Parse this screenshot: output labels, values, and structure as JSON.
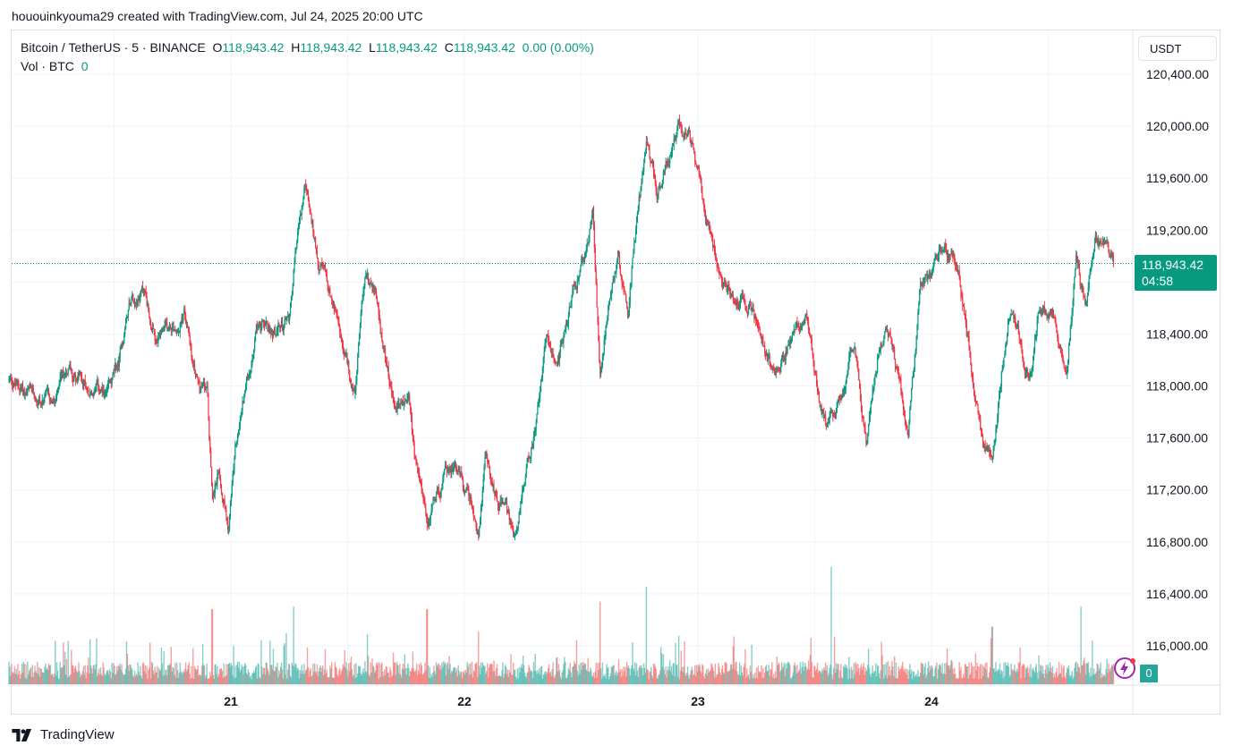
{
  "caption": "hououinkyouma29 created with TradingView.com, Jul 24, 2025 20:00 UTC",
  "legend": {
    "symbol": "Bitcoin / TetherUS · 5 · BINANCE",
    "o_label": "O",
    "o_value": "118,943.42",
    "h_label": "H",
    "h_value": "118,943.42",
    "l_label": "L",
    "l_value": "118,943.42",
    "c_label": "C",
    "c_value": "118,943.42",
    "change": "0.00 (0.00%)"
  },
  "volume_legend": {
    "label": "Vol · BTC",
    "value": "0"
  },
  "currency": "USDT",
  "last_price": {
    "price": "118,943.42",
    "countdown": "04:58"
  },
  "volume_tag": "0",
  "brand": "TradingView",
  "colors": {
    "up": "#089981",
    "down": "#f23645",
    "up_vol": "#26a69a",
    "down_vol": "#ef5350",
    "grid": "#f0f3fa"
  },
  "chart_data": {
    "type": "candlestick",
    "title": "Bitcoin / TetherUS · 5 · BINANCE",
    "ylim": [
      115750,
      120650
    ],
    "y_ticks": [
      {
        "value": 120400,
        "label": "120,400.00"
      },
      {
        "value": 120000,
        "label": "120,000.00"
      },
      {
        "value": 119600,
        "label": "119,600.00"
      },
      {
        "value": 119200,
        "label": "119,200.00"
      },
      {
        "value": 118800,
        "label": "118,800.00"
      },
      {
        "value": 118400,
        "label": "118,400.00"
      },
      {
        "value": 118000,
        "label": "118,000.00"
      },
      {
        "value": 117600,
        "label": "117,600.00"
      },
      {
        "value": 117200,
        "label": "117,200.00"
      },
      {
        "value": 116800,
        "label": "116,800.00"
      },
      {
        "value": 116400,
        "label": "116,400.00"
      },
      {
        "value": 116000,
        "label": "116,000.00"
      }
    ],
    "x_ticks": [
      {
        "day": 21.0,
        "label": "21"
      },
      {
        "day": 22.0,
        "label": "22"
      },
      {
        "day": 23.0,
        "label": "23"
      },
      {
        "day": 24.0,
        "label": "24"
      }
    ],
    "x_range_days": [
      20.05,
      24.95
    ],
    "last_price": 118943.42,
    "price_path": [
      {
        "d": 20.05,
        "p": 118050
      },
      {
        "d": 20.15,
        "p": 117900
      },
      {
        "d": 20.25,
        "p": 117850
      },
      {
        "d": 20.3,
        "p": 118150
      },
      {
        "d": 20.4,
        "p": 118000
      },
      {
        "d": 20.47,
        "p": 117900
      },
      {
        "d": 20.52,
        "p": 118150
      },
      {
        "d": 20.57,
        "p": 118700
      },
      {
        "d": 20.63,
        "p": 118750
      },
      {
        "d": 20.68,
        "p": 118300
      },
      {
        "d": 20.73,
        "p": 118400
      },
      {
        "d": 20.8,
        "p": 118550
      },
      {
        "d": 20.86,
        "p": 118000
      },
      {
        "d": 20.9,
        "p": 117950
      },
      {
        "d": 20.92,
        "p": 117200
      },
      {
        "d": 20.95,
        "p": 117400
      },
      {
        "d": 20.99,
        "p": 116950
      },
      {
        "d": 21.02,
        "p": 117500
      },
      {
        "d": 21.06,
        "p": 117950
      },
      {
        "d": 21.12,
        "p": 118500
      },
      {
        "d": 21.18,
        "p": 118400
      },
      {
        "d": 21.25,
        "p": 118500
      },
      {
        "d": 21.28,
        "p": 119100
      },
      {
        "d": 21.32,
        "p": 119500
      },
      {
        "d": 21.37,
        "p": 119000
      },
      {
        "d": 21.42,
        "p": 118750
      },
      {
        "d": 21.48,
        "p": 118300
      },
      {
        "d": 21.53,
        "p": 117900
      },
      {
        "d": 21.58,
        "p": 118900
      },
      {
        "d": 21.62,
        "p": 118700
      },
      {
        "d": 21.66,
        "p": 118200
      },
      {
        "d": 21.7,
        "p": 117800
      },
      {
        "d": 21.76,
        "p": 117900
      },
      {
        "d": 21.8,
        "p": 117300
      },
      {
        "d": 21.84,
        "p": 116950
      },
      {
        "d": 21.9,
        "p": 117250
      },
      {
        "d": 21.96,
        "p": 117400
      },
      {
        "d": 22.02,
        "p": 117150
      },
      {
        "d": 22.06,
        "p": 116850
      },
      {
        "d": 22.09,
        "p": 117550
      },
      {
        "d": 22.13,
        "p": 117200
      },
      {
        "d": 22.17,
        "p": 117100
      },
      {
        "d": 22.21,
        "p": 116850
      },
      {
        "d": 22.25,
        "p": 117200
      },
      {
        "d": 22.3,
        "p": 117650
      },
      {
        "d": 22.35,
        "p": 118400
      },
      {
        "d": 22.39,
        "p": 118050
      },
      {
        "d": 22.44,
        "p": 118500
      },
      {
        "d": 22.5,
        "p": 118900
      },
      {
        "d": 22.55,
        "p": 119300
      },
      {
        "d": 22.58,
        "p": 118100
      },
      {
        "d": 22.62,
        "p": 118700
      },
      {
        "d": 22.66,
        "p": 119000
      },
      {
        "d": 22.7,
        "p": 118600
      },
      {
        "d": 22.74,
        "p": 119300
      },
      {
        "d": 22.78,
        "p": 119850
      },
      {
        "d": 22.83,
        "p": 119500
      },
      {
        "d": 22.88,
        "p": 119800
      },
      {
        "d": 22.92,
        "p": 120050
      },
      {
        "d": 22.96,
        "p": 119900
      },
      {
        "d": 23.0,
        "p": 119700
      },
      {
        "d": 23.04,
        "p": 119300
      },
      {
        "d": 23.1,
        "p": 118900
      },
      {
        "d": 23.16,
        "p": 118650
      },
      {
        "d": 23.22,
        "p": 118650
      },
      {
        "d": 23.28,
        "p": 118300
      },
      {
        "d": 23.34,
        "p": 118100
      },
      {
        "d": 23.4,
        "p": 118400
      },
      {
        "d": 23.46,
        "p": 118550
      },
      {
        "d": 23.52,
        "p": 117900
      },
      {
        "d": 23.56,
        "p": 117700
      },
      {
        "d": 23.62,
        "p": 118000
      },
      {
        "d": 23.67,
        "p": 118350
      },
      {
        "d": 23.72,
        "p": 117550
      },
      {
        "d": 23.77,
        "p": 118250
      },
      {
        "d": 23.82,
        "p": 118400
      },
      {
        "d": 23.86,
        "p": 118050
      },
      {
        "d": 23.9,
        "p": 117650
      },
      {
        "d": 23.95,
        "p": 118700
      },
      {
        "d": 24.0,
        "p": 118850
      },
      {
        "d": 24.05,
        "p": 119050
      },
      {
        "d": 24.11,
        "p": 118950
      },
      {
        "d": 24.16,
        "p": 118300
      },
      {
        "d": 24.21,
        "p": 117700
      },
      {
        "d": 24.26,
        "p": 117350
      },
      {
        "d": 24.3,
        "p": 118100
      },
      {
        "d": 24.34,
        "p": 118650
      },
      {
        "d": 24.38,
        "p": 118300
      },
      {
        "d": 24.42,
        "p": 118050
      },
      {
        "d": 24.46,
        "p": 118550
      },
      {
        "d": 24.52,
        "p": 118600
      },
      {
        "d": 24.58,
        "p": 118100
      },
      {
        "d": 24.62,
        "p": 118950
      },
      {
        "d": 24.66,
        "p": 118600
      },
      {
        "d": 24.7,
        "p": 119200
      },
      {
        "d": 24.74,
        "p": 119100
      },
      {
        "d": 24.78,
        "p": 118943
      }
    ],
    "volume_spikes": [
      {
        "d": 20.92,
        "v": 6.0
      },
      {
        "d": 21.27,
        "v": 6.2
      },
      {
        "d": 21.84,
        "v": 6.0
      },
      {
        "d": 22.06,
        "v": 4.2
      },
      {
        "d": 22.58,
        "v": 6.6
      },
      {
        "d": 22.78,
        "v": 7.8
      },
      {
        "d": 23.57,
        "v": 9.4
      },
      {
        "d": 24.26,
        "v": 4.6
      },
      {
        "d": 24.64,
        "v": 6.2
      }
    ]
  }
}
